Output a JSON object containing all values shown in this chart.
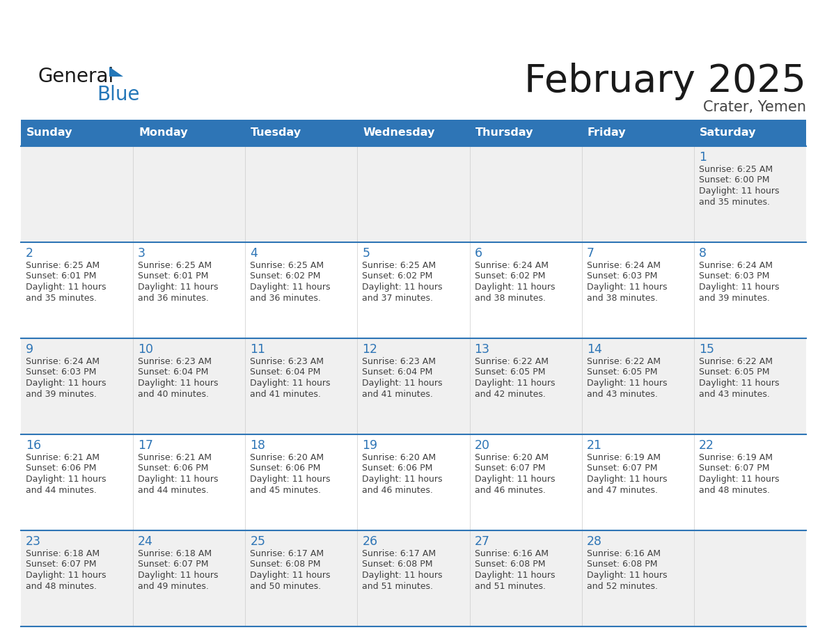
{
  "title": "February 2025",
  "subtitle": "Crater, Yemen",
  "header_bg": "#2E75B6",
  "header_text_color": "#FFFFFF",
  "header_days": [
    "Sunday",
    "Monday",
    "Tuesday",
    "Wednesday",
    "Thursday",
    "Friday",
    "Saturday"
  ],
  "row_bg_odd": "#F0F0F0",
  "row_bg_even": "#FFFFFF",
  "cell_text_color": "#404040",
  "day_num_color": "#2E75B6",
  "title_color": "#1a1a1a",
  "subtitle_color": "#444444",
  "logo_general_color": "#1a1a1a",
  "logo_blue_color": "#2477B8",
  "border_color": "#2E75B6",
  "calendar_data": [
    [
      null,
      null,
      null,
      null,
      null,
      null,
      {
        "day": 1,
        "sunrise": "6:25 AM",
        "sunset": "6:00 PM",
        "daylight": "11 hours",
        "daylight2": "and 35 minutes."
      }
    ],
    [
      {
        "day": 2,
        "sunrise": "6:25 AM",
        "sunset": "6:01 PM",
        "daylight": "11 hours",
        "daylight2": "and 35 minutes."
      },
      {
        "day": 3,
        "sunrise": "6:25 AM",
        "sunset": "6:01 PM",
        "daylight": "11 hours",
        "daylight2": "and 36 minutes."
      },
      {
        "day": 4,
        "sunrise": "6:25 AM",
        "sunset": "6:02 PM",
        "daylight": "11 hours",
        "daylight2": "and 36 minutes."
      },
      {
        "day": 5,
        "sunrise": "6:25 AM",
        "sunset": "6:02 PM",
        "daylight": "11 hours",
        "daylight2": "and 37 minutes."
      },
      {
        "day": 6,
        "sunrise": "6:24 AM",
        "sunset": "6:02 PM",
        "daylight": "11 hours",
        "daylight2": "and 38 minutes."
      },
      {
        "day": 7,
        "sunrise": "6:24 AM",
        "sunset": "6:03 PM",
        "daylight": "11 hours",
        "daylight2": "and 38 minutes."
      },
      {
        "day": 8,
        "sunrise": "6:24 AM",
        "sunset": "6:03 PM",
        "daylight": "11 hours",
        "daylight2": "and 39 minutes."
      }
    ],
    [
      {
        "day": 9,
        "sunrise": "6:24 AM",
        "sunset": "6:03 PM",
        "daylight": "11 hours",
        "daylight2": "and 39 minutes."
      },
      {
        "day": 10,
        "sunrise": "6:23 AM",
        "sunset": "6:04 PM",
        "daylight": "11 hours",
        "daylight2": "and 40 minutes."
      },
      {
        "day": 11,
        "sunrise": "6:23 AM",
        "sunset": "6:04 PM",
        "daylight": "11 hours",
        "daylight2": "and 41 minutes."
      },
      {
        "day": 12,
        "sunrise": "6:23 AM",
        "sunset": "6:04 PM",
        "daylight": "11 hours",
        "daylight2": "and 41 minutes."
      },
      {
        "day": 13,
        "sunrise": "6:22 AM",
        "sunset": "6:05 PM",
        "daylight": "11 hours",
        "daylight2": "and 42 minutes."
      },
      {
        "day": 14,
        "sunrise": "6:22 AM",
        "sunset": "6:05 PM",
        "daylight": "11 hours",
        "daylight2": "and 43 minutes."
      },
      {
        "day": 15,
        "sunrise": "6:22 AM",
        "sunset": "6:05 PM",
        "daylight": "11 hours",
        "daylight2": "and 43 minutes."
      }
    ],
    [
      {
        "day": 16,
        "sunrise": "6:21 AM",
        "sunset": "6:06 PM",
        "daylight": "11 hours",
        "daylight2": "and 44 minutes."
      },
      {
        "day": 17,
        "sunrise": "6:21 AM",
        "sunset": "6:06 PM",
        "daylight": "11 hours",
        "daylight2": "and 44 minutes."
      },
      {
        "day": 18,
        "sunrise": "6:20 AM",
        "sunset": "6:06 PM",
        "daylight": "11 hours",
        "daylight2": "and 45 minutes."
      },
      {
        "day": 19,
        "sunrise": "6:20 AM",
        "sunset": "6:06 PM",
        "daylight": "11 hours",
        "daylight2": "and 46 minutes."
      },
      {
        "day": 20,
        "sunrise": "6:20 AM",
        "sunset": "6:07 PM",
        "daylight": "11 hours",
        "daylight2": "and 46 minutes."
      },
      {
        "day": 21,
        "sunrise": "6:19 AM",
        "sunset": "6:07 PM",
        "daylight": "11 hours",
        "daylight2": "and 47 minutes."
      },
      {
        "day": 22,
        "sunrise": "6:19 AM",
        "sunset": "6:07 PM",
        "daylight": "11 hours",
        "daylight2": "and 48 minutes."
      }
    ],
    [
      {
        "day": 23,
        "sunrise": "6:18 AM",
        "sunset": "6:07 PM",
        "daylight": "11 hours",
        "daylight2": "and 48 minutes."
      },
      {
        "day": 24,
        "sunrise": "6:18 AM",
        "sunset": "6:07 PM",
        "daylight": "11 hours",
        "daylight2": "and 49 minutes."
      },
      {
        "day": 25,
        "sunrise": "6:17 AM",
        "sunset": "6:08 PM",
        "daylight": "11 hours",
        "daylight2": "and 50 minutes."
      },
      {
        "day": 26,
        "sunrise": "6:17 AM",
        "sunset": "6:08 PM",
        "daylight": "11 hours",
        "daylight2": "and 51 minutes."
      },
      {
        "day": 27,
        "sunrise": "6:16 AM",
        "sunset": "6:08 PM",
        "daylight": "11 hours",
        "daylight2": "and 51 minutes."
      },
      {
        "day": 28,
        "sunrise": "6:16 AM",
        "sunset": "6:08 PM",
        "daylight": "11 hours",
        "daylight2": "and 52 minutes."
      },
      null
    ]
  ]
}
